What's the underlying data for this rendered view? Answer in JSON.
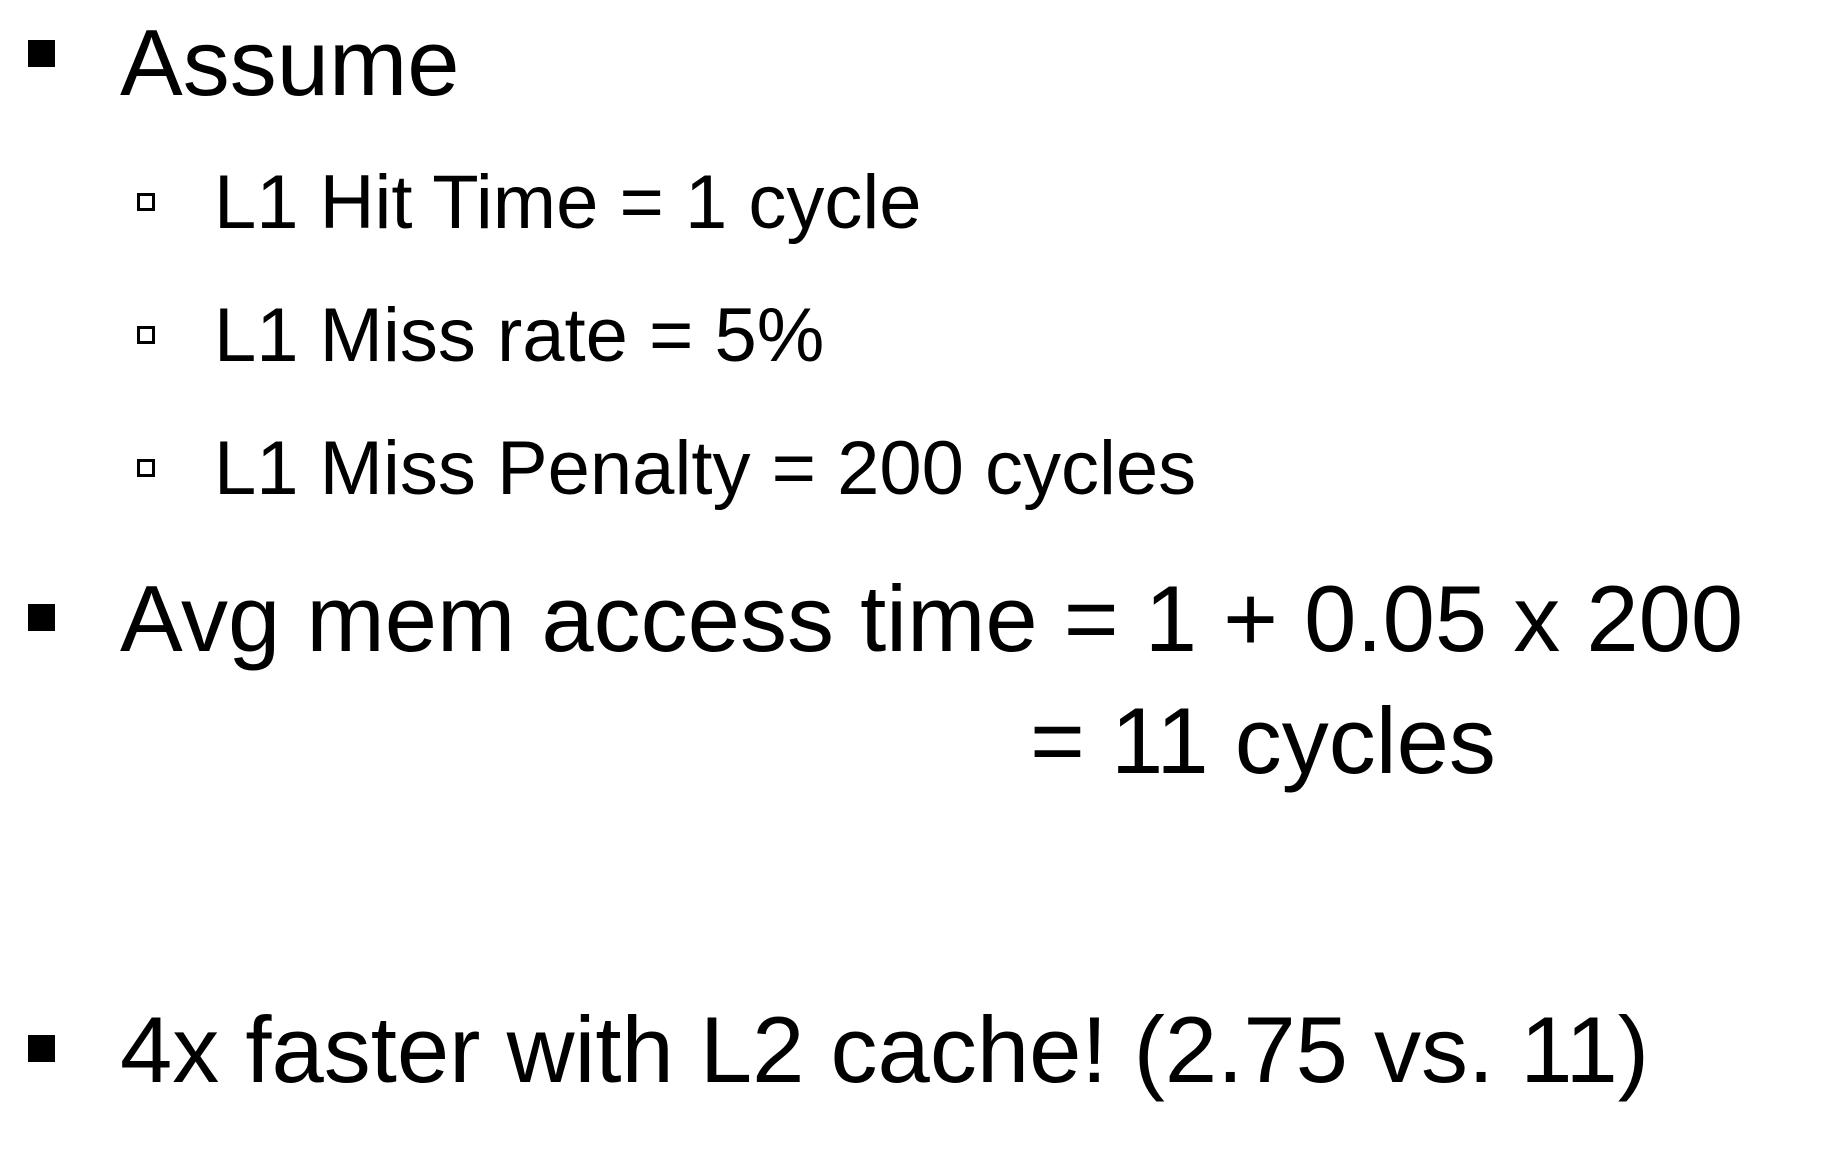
{
  "slide": {
    "items": [
      {
        "text": "Assume"
      },
      {
        "text": "L1 Hit Time = 1 cycle"
      },
      {
        "text": "L1 Miss rate = 5%"
      },
      {
        "text": "L1 Miss Penalty = 200 cycles"
      },
      {
        "text": "Avg mem access time = 1 + 0.05 x 200"
      },
      {
        "text": "= 11 cycles"
      },
      {
        "text": "4x faster with L2 cache! (2.75 vs. 11)"
      }
    ]
  },
  "colors": {
    "text": "#000000",
    "background": "#ffffff"
  },
  "icons": {
    "level1_bullet": "filled-square-bullet-icon",
    "level2_bullet": "hollow-square-bullet-icon"
  }
}
